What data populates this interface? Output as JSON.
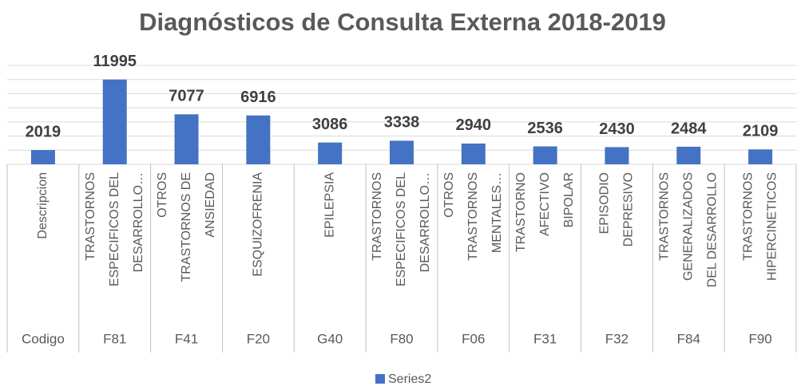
{
  "chart_data": {
    "type": "bar",
    "title": "Diagnósticos de Consulta Externa 2018-2019",
    "categories": [
      "Codigo",
      "F81",
      "F41",
      "F20",
      "G40",
      "F80",
      "F06",
      "F31",
      "F32",
      "F84",
      "F90"
    ],
    "descriptions": [
      [
        "Descripcion"
      ],
      [
        "TRASTORNOS",
        "ESPECIFICOS DEL",
        "DESARROLLO…"
      ],
      [
        "OTROS",
        "TRASTORNOS DE",
        "ANSIEDAD"
      ],
      [
        "ESQUIZOFRENIA"
      ],
      [
        "EPILEPSIA"
      ],
      [
        "TRASTORNOS",
        "ESPECIFICOS DEL",
        "DESARROLLO…"
      ],
      [
        "OTROS",
        "TRASTORNOS",
        "MENTALES…"
      ],
      [
        "TRASTORNO",
        "AFECTIVO",
        "BIPOLAR"
      ],
      [
        "EPISODIO",
        "DEPRESIVO"
      ],
      [
        "TRASTORNOS",
        "GENERALIZADOS",
        "DEL DESARROLLO"
      ],
      [
        "TRASTORNOS",
        "HIPERCINETICOS"
      ]
    ],
    "series": [
      {
        "name": "Series2",
        "color": "#4472c4",
        "values": [
          2019,
          11995,
          7077,
          6916,
          3086,
          3338,
          2940,
          2536,
          2430,
          2484,
          2109
        ]
      }
    ],
    "ylim": [
      0,
      14000
    ],
    "yticks": [
      0,
      2000,
      4000,
      6000,
      8000,
      10000,
      12000,
      14000
    ],
    "grid": true
  }
}
